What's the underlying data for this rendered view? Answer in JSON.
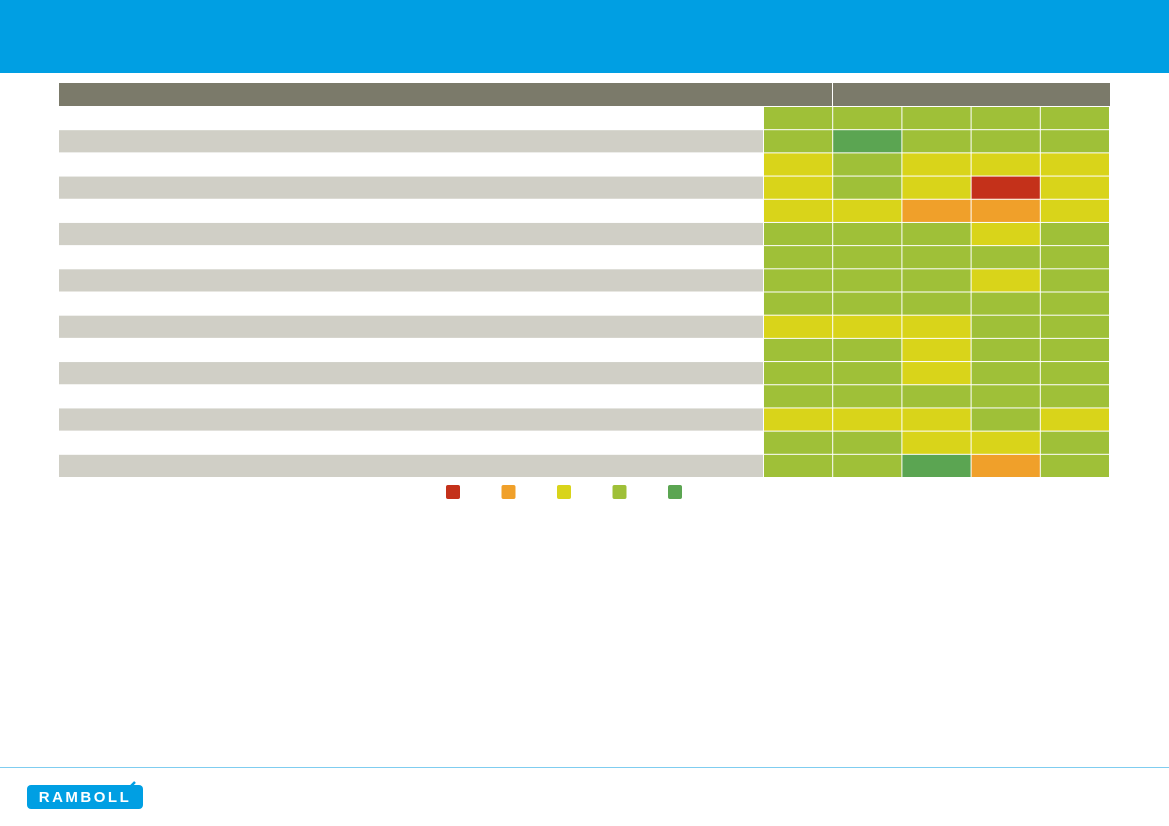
{
  "logo": {
    "text": "RAMBOLL"
  },
  "legend": {
    "colors": [
      "#c4311a",
      "#f0a02a",
      "#d9d41a",
      "#9fc038",
      "#5ba552"
    ]
  },
  "table": {
    "rows": [
      [
        "#9fc038",
        "#9fc038",
        "#9fc038",
        "#9fc038",
        "#9fc038"
      ],
      [
        "#9fc038",
        "#5ba552",
        "#9fc038",
        "#9fc038",
        "#9fc038"
      ],
      [
        "#d9d41a",
        "#9fc038",
        "#d9d41a",
        "#d9d41a",
        "#d9d41a"
      ],
      [
        "#d9d41a",
        "#9fc038",
        "#d9d41a",
        "#c4311a",
        "#d9d41a"
      ],
      [
        "#d9d41a",
        "#d9d41a",
        "#f0a02a",
        "#f0a02a",
        "#d9d41a"
      ],
      [
        "#9fc038",
        "#9fc038",
        "#9fc038",
        "#d9d41a",
        "#9fc038"
      ],
      [
        "#9fc038",
        "#9fc038",
        "#9fc038",
        "#9fc038",
        "#9fc038"
      ],
      [
        "#9fc038",
        "#9fc038",
        "#9fc038",
        "#d9d41a",
        "#9fc038"
      ],
      [
        "#9fc038",
        "#9fc038",
        "#9fc038",
        "#9fc038",
        "#9fc038"
      ],
      [
        "#d9d41a",
        "#d9d41a",
        "#d9d41a",
        "#9fc038",
        "#9fc038"
      ],
      [
        "#9fc038",
        "#9fc038",
        "#d9d41a",
        "#9fc038",
        "#9fc038"
      ],
      [
        "#9fc038",
        "#9fc038",
        "#d9d41a",
        "#9fc038",
        "#9fc038"
      ],
      [
        "#9fc038",
        "#9fc038",
        "#9fc038",
        "#9fc038",
        "#9fc038"
      ],
      [
        "#d9d41a",
        "#d9d41a",
        "#d9d41a",
        "#9fc038",
        "#d9d41a"
      ],
      [
        "#9fc038",
        "#9fc038",
        "#d9d41a",
        "#d9d41a",
        "#9fc038"
      ],
      [
        "#9fc038",
        "#9fc038",
        "#5ba552",
        "#f0a02a",
        "#9fc038"
      ]
    ]
  }
}
